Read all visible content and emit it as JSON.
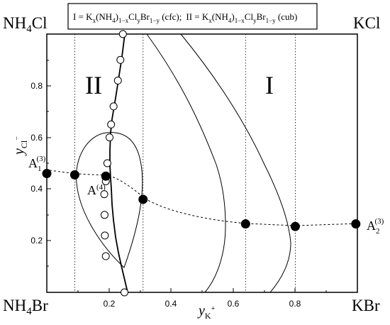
{
  "legend": {
    "I_prefix": "I = K",
    "I_x": "x",
    "I_a": "(NH",
    "I_4": "4",
    "I_b": ")",
    "I_1mx": "1−x",
    "I_c": "Cl",
    "I_y": "y",
    "I_d": "Br",
    "I_1my": "1−y",
    "I_e": " (cfc);",
    "II_prefix": "II = K",
    "II_x": "x",
    "II_a": "(NH",
    "II_4": "4",
    "II_b": ")",
    "II_1mx": "1−x",
    "II_c": "Cl",
    "II_y": "y",
    "II_d": "Br",
    "II_1my": "1−y",
    "II_e": " (cub)"
  },
  "corners": {
    "top_left": "NH",
    "top_left_sub": "4",
    "top_left_suffix": "Cl",
    "top_right": "KCl",
    "bottom_left": "NH",
    "bottom_left_sub": "4",
    "bottom_left_suffix": "Br",
    "bottom_right": "KBr"
  },
  "regions": {
    "I": "I",
    "II": "II"
  },
  "axes": {
    "x_label_main": "y",
    "x_label_sub": "K",
    "x_label_sup": "+",
    "y_label_main": "y",
    "y_label_sub": "Cl",
    "y_label_sup": "−",
    "x_ticks": [
      "0.2",
      "0.4",
      "0.6",
      "0.8"
    ],
    "y_ticks": [
      "0.2",
      "0.4",
      "0.6",
      "0.8"
    ]
  },
  "point_labels": {
    "A1_main": "A",
    "A1_sub": "1",
    "A1_sup": "(3)",
    "A2_main": "A",
    "A2_sub": "2",
    "A2_sup": "(3)",
    "A4_main": "A",
    "A4_sup": "(4)"
  },
  "chart_data": {
    "type": "phase-diagram",
    "x_range": [
      0,
      1
    ],
    "y_range": [
      0,
      1
    ],
    "vertical_dashed_x": [
      0.09,
      0.31,
      0.64,
      0.8
    ],
    "eutectic_valley": [
      [
        0,
        0.46
      ],
      [
        0.09,
        0.455
      ],
      [
        0.19,
        0.45
      ],
      [
        0.31,
        0.36
      ],
      [
        0.64,
        0.265
      ],
      [
        0.8,
        0.255
      ],
      [
        1,
        0.265
      ]
    ],
    "solid_points": [
      [
        0,
        0.46
      ],
      [
        0.09,
        0.455
      ],
      [
        0.19,
        0.45
      ],
      [
        0.31,
        0.36
      ],
      [
        0.64,
        0.265
      ],
      [
        0.8,
        0.255
      ],
      [
        0.995,
        0.265
      ]
    ],
    "open_points": [
      [
        0.245,
        1.0
      ],
      [
        0.237,
        0.9
      ],
      [
        0.229,
        0.82
      ],
      [
        0.215,
        0.72
      ],
      [
        0.207,
        0.65
      ],
      [
        0.202,
        0.6
      ],
      [
        0.195,
        0.5
      ],
      [
        0.19,
        0.43
      ],
      [
        0.185,
        0.38
      ],
      [
        0.186,
        0.3
      ],
      [
        0.187,
        0.22
      ],
      [
        0.19,
        0.14
      ],
      [
        0.25,
        0.0
      ]
    ]
  }
}
